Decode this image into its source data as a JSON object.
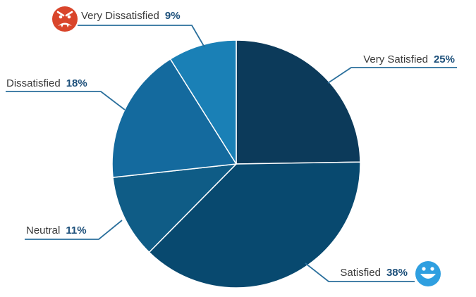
{
  "chart_data": {
    "type": "pie",
    "categories": [
      "Very Satisfied",
      "Satisfied",
      "Neutral",
      "Dissatisfied",
      "Very Dissatisfied"
    ],
    "values": [
      25,
      38,
      11,
      18,
      9
    ],
    "labels": [
      "25%",
      "38%",
      "11%",
      "18%",
      "9%"
    ],
    "colors": [
      "#0c3a5a",
      "#08496f",
      "#0f5c86",
      "#146a9e",
      "#1a80b6"
    ],
    "start": "12 o'clock",
    "direction": "clockwise",
    "leader_color": "#2a6f9c"
  },
  "icons": {
    "very_dissatisfied": {
      "name": "angry-face-icon",
      "color": "#d9452b"
    },
    "satisfied": {
      "name": "happy-face-icon",
      "color": "#2f9fe0"
    }
  }
}
